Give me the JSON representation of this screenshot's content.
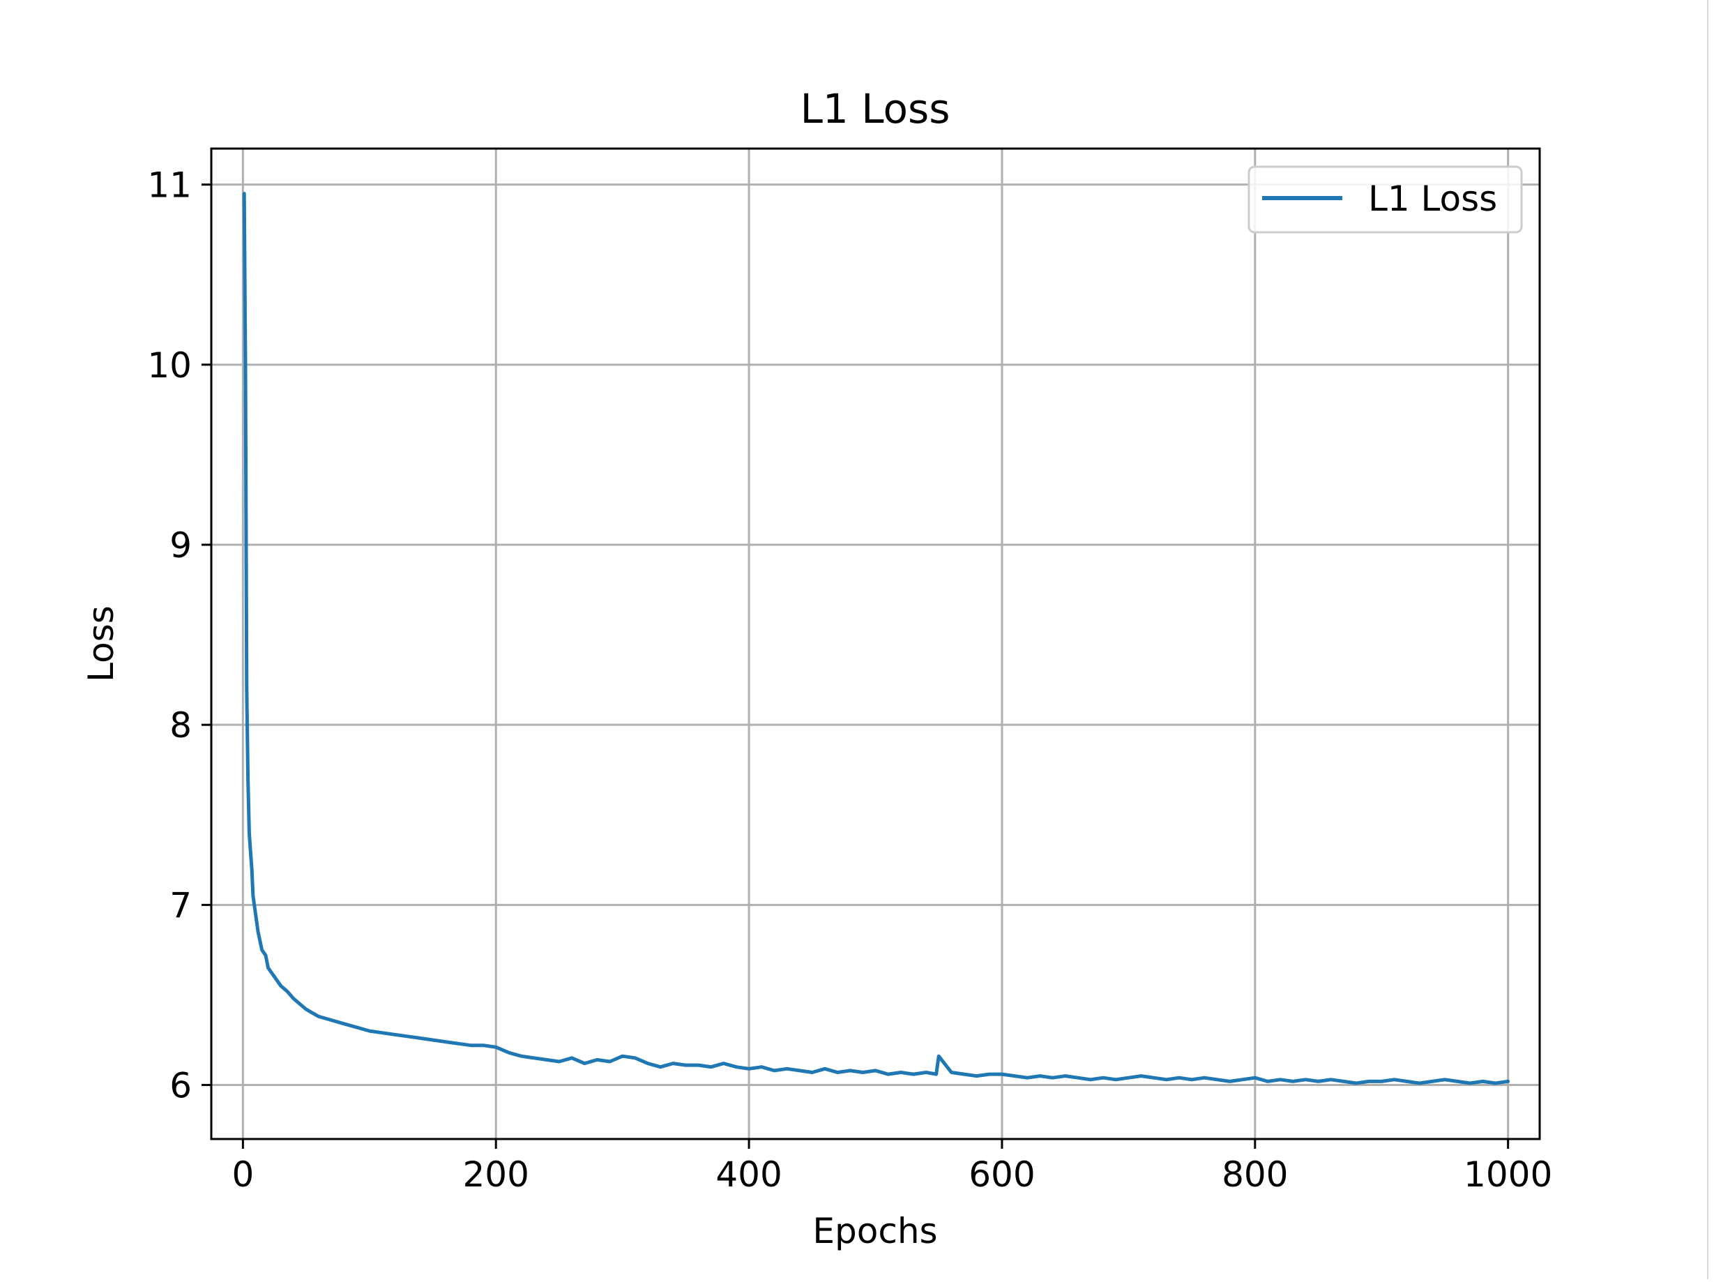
{
  "chart_data": {
    "type": "line",
    "title": "L1 Loss",
    "xlabel": "Epochs",
    "ylabel": "Loss",
    "xlim": [
      -25,
      1025
    ],
    "ylim": [
      5.7,
      11.2
    ],
    "xticks": [
      0,
      200,
      400,
      600,
      800,
      1000
    ],
    "yticks": [
      6,
      7,
      8,
      9,
      10,
      11
    ],
    "grid": true,
    "legend_position": "top-right",
    "colors": {
      "series": "#1f77b4",
      "grid": "#b0b0b0",
      "axes": "#000000",
      "legend_border": "#cccccc"
    },
    "series": [
      {
        "name": "L1 Loss",
        "x": [
          1,
          2,
          3,
          4,
          5,
          6,
          7,
          8,
          10,
          12,
          15,
          18,
          20,
          25,
          30,
          35,
          40,
          45,
          50,
          55,
          60,
          70,
          80,
          90,
          100,
          110,
          120,
          130,
          140,
          150,
          160,
          170,
          180,
          190,
          200,
          210,
          220,
          230,
          240,
          250,
          260,
          270,
          280,
          290,
          300,
          310,
          320,
          330,
          340,
          350,
          360,
          370,
          380,
          390,
          400,
          410,
          420,
          430,
          440,
          450,
          460,
          470,
          480,
          490,
          500,
          510,
          520,
          530,
          540,
          548,
          550,
          560,
          570,
          580,
          590,
          600,
          610,
          620,
          630,
          640,
          650,
          660,
          670,
          680,
          690,
          700,
          710,
          720,
          730,
          740,
          750,
          760,
          770,
          780,
          790,
          800,
          810,
          820,
          830,
          840,
          850,
          860,
          870,
          880,
          890,
          900,
          910,
          920,
          930,
          940,
          950,
          960,
          970,
          980,
          990,
          1000
        ],
        "y": [
          10.95,
          10.0,
          8.2,
          7.7,
          7.4,
          7.3,
          7.2,
          7.05,
          6.95,
          6.85,
          6.75,
          6.72,
          6.65,
          6.6,
          6.55,
          6.52,
          6.48,
          6.45,
          6.42,
          6.4,
          6.38,
          6.36,
          6.34,
          6.32,
          6.3,
          6.29,
          6.28,
          6.27,
          6.26,
          6.25,
          6.24,
          6.23,
          6.22,
          6.22,
          6.21,
          6.18,
          6.16,
          6.15,
          6.14,
          6.13,
          6.15,
          6.12,
          6.14,
          6.13,
          6.16,
          6.15,
          6.12,
          6.1,
          6.12,
          6.11,
          6.11,
          6.1,
          6.12,
          6.1,
          6.09,
          6.1,
          6.08,
          6.09,
          6.08,
          6.07,
          6.09,
          6.07,
          6.08,
          6.07,
          6.08,
          6.06,
          6.07,
          6.06,
          6.07,
          6.06,
          6.16,
          6.07,
          6.06,
          6.05,
          6.06,
          6.06,
          6.05,
          6.04,
          6.05,
          6.04,
          6.05,
          6.04,
          6.03,
          6.04,
          6.03,
          6.04,
          6.05,
          6.04,
          6.03,
          6.04,
          6.03,
          6.04,
          6.03,
          6.02,
          6.03,
          6.04,
          6.02,
          6.03,
          6.02,
          6.03,
          6.02,
          6.03,
          6.02,
          6.01,
          6.02,
          6.02,
          6.03,
          6.02,
          6.01,
          6.02,
          6.03,
          6.02,
          6.01,
          6.02,
          6.01,
          6.02
        ]
      }
    ]
  }
}
